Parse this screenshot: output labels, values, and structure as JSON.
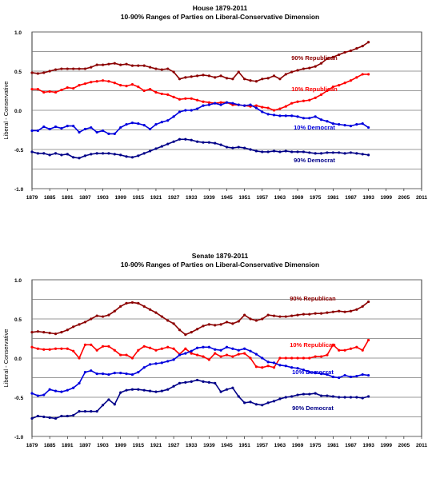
{
  "chart_data": [
    {
      "type": "line",
      "title": "House 1879-2011",
      "subtitle": "10-90% Ranges of Parties on Liberal-Conservative Dimension",
      "xlabel": "",
      "ylabel": "Liberal - Conservative",
      "ylim": [
        -1.0,
        1.0
      ],
      "xlim": [
        1879,
        2011
      ],
      "yticks": [
        "1.0",
        "0.5",
        "0.0",
        "-0.5",
        "-1.0"
      ],
      "xticks": [
        "1879",
        "1885",
        "1891",
        "1897",
        "1903",
        "1909",
        "1915",
        "1921",
        "1927",
        "1933",
        "1939",
        "1945",
        "1951",
        "1957",
        "1963",
        "1969",
        "1975",
        "1981",
        "1987",
        "1993",
        "1999",
        "2005",
        "2011"
      ],
      "grid": true,
      "x_start": 1879,
      "x_step": 2,
      "series": [
        {
          "name": "90% Republican",
          "color": "#8b0000",
          "values": [
            0.48,
            0.47,
            0.48,
            0.5,
            0.52,
            0.53,
            0.53,
            0.53,
            0.53,
            0.53,
            0.55,
            0.58,
            0.58,
            0.59,
            0.6,
            0.58,
            0.59,
            0.57,
            0.57,
            0.57,
            0.55,
            0.53,
            0.52,
            0.53,
            0.49,
            0.4,
            0.42,
            0.43,
            0.44,
            0.45,
            0.44,
            0.42,
            0.44,
            0.41,
            0.4,
            0.49,
            0.4,
            0.38,
            0.37,
            0.4,
            0.41,
            0.44,
            0.4,
            0.46,
            0.49,
            0.51,
            0.53,
            0.54,
            0.56,
            0.6,
            0.66,
            0.68,
            0.71,
            0.74,
            0.76,
            0.79,
            0.82,
            0.87
          ]
        },
        {
          "name": "10% Republican",
          "color": "#ff0000",
          "values": [
            0.27,
            0.27,
            0.23,
            0.24,
            0.23,
            0.26,
            0.29,
            0.28,
            0.32,
            0.34,
            0.36,
            0.37,
            0.38,
            0.37,
            0.35,
            0.32,
            0.31,
            0.33,
            0.3,
            0.25,
            0.27,
            0.23,
            0.21,
            0.2,
            0.17,
            0.14,
            0.15,
            0.15,
            0.13,
            0.11,
            0.1,
            0.09,
            0.1,
            0.1,
            0.07,
            0.07,
            0.06,
            0.05,
            0.06,
            0.04,
            0.03,
            0.0,
            0.02,
            0.05,
            0.09,
            0.11,
            0.12,
            0.13,
            0.16,
            0.2,
            0.25,
            0.3,
            0.32,
            0.35,
            0.38,
            0.42,
            0.46,
            0.46
          ]
        },
        {
          "name": "10% Democrat",
          "color": "#0000dd",
          "values": [
            -0.26,
            -0.26,
            -0.21,
            -0.24,
            -0.21,
            -0.23,
            -0.2,
            -0.2,
            -0.28,
            -0.24,
            -0.22,
            -0.28,
            -0.26,
            -0.3,
            -0.3,
            -0.22,
            -0.18,
            -0.16,
            -0.17,
            -0.19,
            -0.24,
            -0.18,
            -0.15,
            -0.13,
            -0.08,
            -0.02,
            0.0,
            0.0,
            0.02,
            0.06,
            0.07,
            0.09,
            0.07,
            0.1,
            0.09,
            0.07,
            0.06,
            0.07,
            0.03,
            -0.02,
            -0.05,
            -0.06,
            -0.07,
            -0.07,
            -0.07,
            -0.08,
            -0.1,
            -0.1,
            -0.08,
            -0.12,
            -0.14,
            -0.17,
            -0.18,
            -0.19,
            -0.2,
            -0.18,
            -0.17,
            -0.22
          ]
        },
        {
          "name": "90% Democrat",
          "color": "#000088",
          "values": [
            -0.53,
            -0.55,
            -0.55,
            -0.57,
            -0.55,
            -0.57,
            -0.56,
            -0.6,
            -0.61,
            -0.58,
            -0.56,
            -0.55,
            -0.55,
            -0.55,
            -0.56,
            -0.57,
            -0.59,
            -0.6,
            -0.58,
            -0.55,
            -0.52,
            -0.49,
            -0.46,
            -0.43,
            -0.4,
            -0.37,
            -0.37,
            -0.38,
            -0.4,
            -0.41,
            -0.41,
            -0.42,
            -0.44,
            -0.47,
            -0.48,
            -0.47,
            -0.48,
            -0.5,
            -0.52,
            -0.53,
            -0.53,
            -0.52,
            -0.53,
            -0.52,
            -0.53,
            -0.53,
            -0.53,
            -0.54,
            -0.55,
            -0.55,
            -0.54,
            -0.54,
            -0.54,
            -0.55,
            -0.54,
            -0.55,
            -0.56,
            -0.57
          ]
        }
      ]
    },
    {
      "type": "line",
      "title": "Senate 1879-2011",
      "subtitle": "10-90% Ranges of Parties on Liberal-Conservative Dimension",
      "xlabel": "",
      "ylabel": "Liberal - Conservative",
      "ylim": [
        -1.0,
        1.0
      ],
      "xlim": [
        1879,
        2011
      ],
      "yticks": [
        "1.0",
        "0.5",
        "0.0",
        "-0.5",
        "-1.0"
      ],
      "xticks": [
        "1879",
        "1885",
        "1891",
        "1897",
        "1903",
        "1909",
        "1915",
        "1921",
        "1927",
        "1933",
        "1939",
        "1945",
        "1951",
        "1957",
        "1963",
        "1969",
        "1975",
        "1981",
        "1987",
        "1993",
        "1999",
        "2005",
        "2011"
      ],
      "grid": true,
      "x_start": 1879,
      "x_step": 2,
      "series": [
        {
          "name": "90% Republican",
          "color": "#8b0000",
          "values": [
            0.33,
            0.34,
            0.33,
            0.32,
            0.31,
            0.33,
            0.36,
            0.4,
            0.43,
            0.46,
            0.5,
            0.54,
            0.53,
            0.55,
            0.6,
            0.66,
            0.7,
            0.71,
            0.7,
            0.66,
            0.62,
            0.58,
            0.53,
            0.48,
            0.44,
            0.36,
            0.3,
            0.33,
            0.37,
            0.41,
            0.43,
            0.42,
            0.43,
            0.46,
            0.44,
            0.47,
            0.55,
            0.5,
            0.48,
            0.5,
            0.55,
            0.54,
            0.53,
            0.53,
            0.54,
            0.55,
            0.56,
            0.56,
            0.57,
            0.57,
            0.58,
            0.59,
            0.6,
            0.59,
            0.6,
            0.62,
            0.66,
            0.72
          ]
        },
        {
          "name": "10% Republican",
          "color": "#ff0000",
          "values": [
            0.14,
            0.12,
            0.11,
            0.11,
            0.12,
            0.12,
            0.12,
            0.09,
            0.0,
            0.17,
            0.17,
            0.1,
            0.15,
            0.15,
            0.1,
            0.04,
            0.04,
            0.0,
            0.1,
            0.15,
            0.13,
            0.1,
            0.12,
            0.14,
            0.12,
            0.05,
            0.12,
            0.06,
            0.04,
            0.02,
            -0.02,
            0.06,
            0.02,
            0.04,
            0.02,
            0.05,
            0.06,
            0.0,
            -0.11,
            -0.12,
            -0.1,
            -0.12,
            0.0,
            0.0,
            0.0,
            0.0,
            0.0,
            0.0,
            0.02,
            0.02,
            0.04,
            0.17,
            0.1,
            0.1,
            0.12,
            0.14,
            0.1,
            0.23
          ]
        },
        {
          "name": "10% Democrat",
          "color": "#0000dd",
          "values": [
            -0.45,
            -0.48,
            -0.47,
            -0.4,
            -0.42,
            -0.43,
            -0.41,
            -0.38,
            -0.32,
            -0.18,
            -0.16,
            -0.2,
            -0.2,
            -0.21,
            -0.19,
            -0.19,
            -0.2,
            -0.21,
            -0.18,
            -0.12,
            -0.08,
            -0.07,
            -0.06,
            -0.04,
            -0.02,
            0.04,
            0.06,
            0.09,
            0.13,
            0.14,
            0.14,
            0.11,
            0.1,
            0.14,
            0.12,
            0.1,
            0.12,
            0.09,
            0.05,
            0.0,
            -0.05,
            -0.06,
            -0.09,
            -0.1,
            -0.12,
            -0.13,
            -0.15,
            -0.18,
            -0.19,
            -0.2,
            -0.21,
            -0.24,
            -0.25,
            -0.22,
            -0.24,
            -0.23,
            -0.21,
            -0.22
          ]
        },
        {
          "name": "90% Democrat",
          "color": "#000088",
          "values": [
            -0.77,
            -0.74,
            -0.75,
            -0.76,
            -0.77,
            -0.74,
            -0.74,
            -0.73,
            -0.68,
            -0.68,
            -0.68,
            -0.68,
            -0.6,
            -0.53,
            -0.59,
            -0.44,
            -0.41,
            -0.4,
            -0.4,
            -0.41,
            -0.42,
            -0.43,
            -0.42,
            -0.4,
            -0.36,
            -0.32,
            -0.31,
            -0.3,
            -0.28,
            -0.3,
            -0.31,
            -0.32,
            -0.43,
            -0.4,
            -0.38,
            -0.49,
            -0.57,
            -0.56,
            -0.59,
            -0.6,
            -0.57,
            -0.55,
            -0.52,
            -0.5,
            -0.49,
            -0.47,
            -0.46,
            -0.46,
            -0.45,
            -0.48,
            -0.48,
            -0.49,
            -0.5,
            -0.5,
            -0.5,
            -0.5,
            -0.51,
            -0.49
          ]
        }
      ]
    }
  ]
}
